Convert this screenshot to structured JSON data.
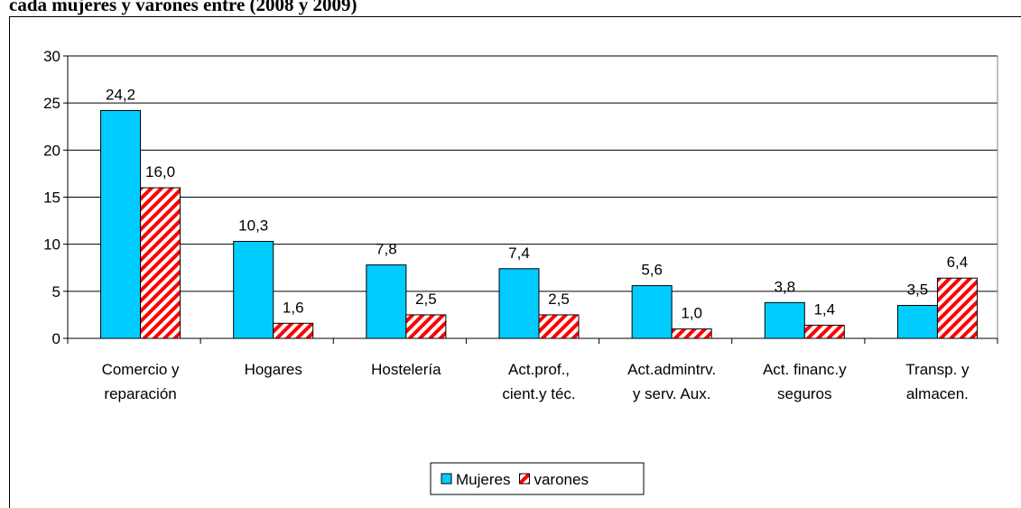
{
  "chart_data": {
    "type": "bar",
    "title": "cada mujeres y varones entre (2008 y 2009)",
    "categories": [
      "Comercio y\nreparación",
      "Hogares",
      "Hostelería",
      "Act.prof.,\ncient.y téc.",
      "Act.admintrv.\ny serv. Aux.",
      "Act. financ.y\nseguros",
      "Transp. y\nalmacen."
    ],
    "series": [
      {
        "name": "Mujeres",
        "color": "#00ccff",
        "values": [
          24.2,
          10.3,
          7.8,
          7.4,
          5.6,
          3.8,
          3.5
        ],
        "value_labels": [
          "24,2",
          "10,3",
          "7,8",
          "7,4",
          "5,6",
          "3,8",
          "3,5"
        ]
      },
      {
        "name": "varones",
        "color": "#ff0000",
        "values": [
          16.0,
          1.6,
          2.5,
          2.5,
          1.0,
          1.4,
          6.4
        ],
        "value_labels": [
          "16,0",
          "1,6",
          "2,5",
          "2,5",
          "1,0",
          "1,4",
          "6,4"
        ]
      }
    ],
    "ylim": [
      0,
      30
    ],
    "yticks": [
      0,
      5,
      10,
      15,
      20,
      25,
      30
    ],
    "grid": true,
    "legend": "bottom"
  }
}
